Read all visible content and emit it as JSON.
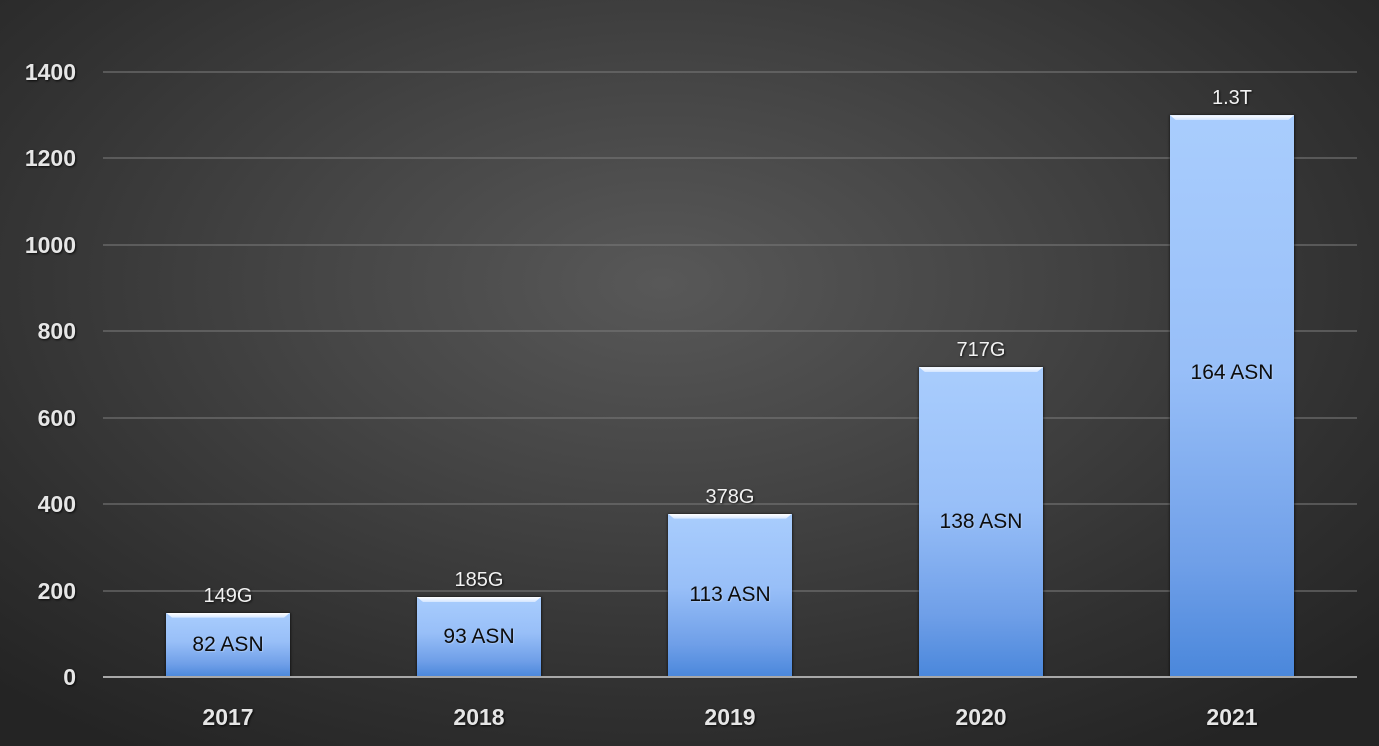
{
  "chart_data": {
    "type": "bar",
    "title": "",
    "xlabel": "",
    "ylabel": "",
    "ylim": [
      0,
      1400
    ],
    "yticks": [
      0,
      200,
      400,
      600,
      800,
      1000,
      1200,
      1400
    ],
    "grid": true,
    "legend": null,
    "categories": [
      "2017",
      "2018",
      "2019",
      "2020",
      "2021"
    ],
    "values": [
      149,
      185,
      378,
      717,
      1300
    ],
    "value_labels": [
      "149G",
      "185G",
      "378G",
      "717G",
      "1.3T"
    ],
    "inner_labels": [
      "82 ASN",
      "93 ASN",
      "113 ASN",
      "138 ASN",
      "164 ASN"
    ],
    "colors": {
      "background": "#3a3a3a",
      "bar_top": "#a9cdfd",
      "bar_bottom": "#4a87db",
      "gridline": "#6e6e6e",
      "axis": "#a8a8a8",
      "tick_text": "#e6e6e6"
    }
  },
  "labels": {
    "yticks": [
      "0",
      "200",
      "400",
      "600",
      "800",
      "1000",
      "1200",
      "1400"
    ],
    "xticks": [
      "2017",
      "2018",
      "2019",
      "2020",
      "2021"
    ],
    "bars": [
      {
        "top": "149G",
        "inner": "82 ASN"
      },
      {
        "top": "185G",
        "inner": "93 ASN"
      },
      {
        "top": "378G",
        "inner": "113 ASN"
      },
      {
        "top": "717G",
        "inner": "138 ASN"
      },
      {
        "top": "1.3T",
        "inner": "164 ASN"
      }
    ]
  }
}
